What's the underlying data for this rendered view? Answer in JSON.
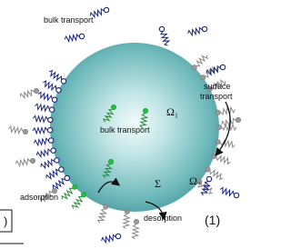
{
  "labels": {
    "bulk_transport_top": "bulk transport",
    "surface_transport_1": "surface",
    "surface_transport_2": "transport",
    "omega_1": "Ω₁",
    "bulk_transport_inner": "bulk transport",
    "sigma": "Σ",
    "omega_2": "Ω₂",
    "adsorption": "adsorption",
    "desorption": "desorption",
    "equation_number": "(1)",
    "cropped_box": ")"
  }
}
